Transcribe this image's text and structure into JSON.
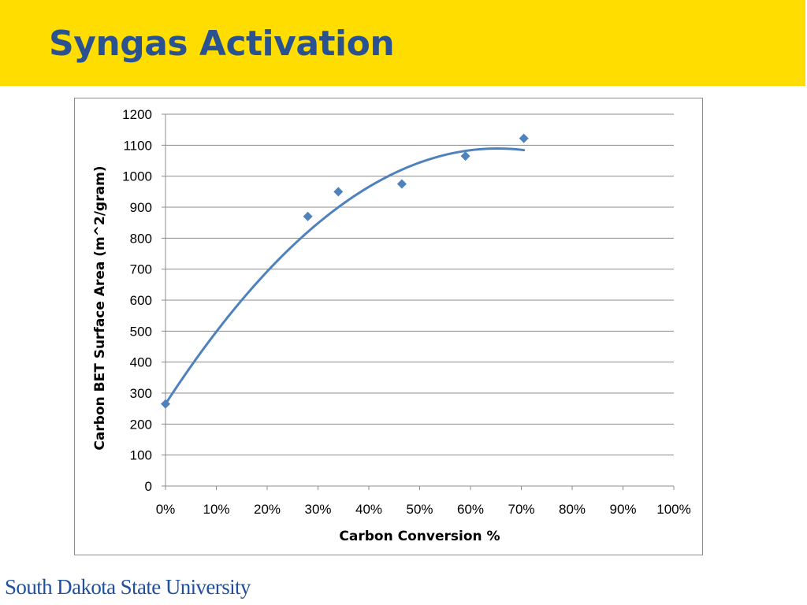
{
  "slide": {
    "title": "Syngas Activation",
    "footer": "South Dakota State University",
    "band_color": "#FFDD00",
    "title_color": "#2A5291"
  },
  "chart_data": {
    "type": "scatter",
    "title": "",
    "xlabel": "Carbon Conversion %",
    "ylabel": "Carbon BET Surface Area (m^2/gram)",
    "xlim": [
      0,
      100
    ],
    "ylim": [
      0,
      1200
    ],
    "x_ticks": [
      "0%",
      "10%",
      "20%",
      "30%",
      "40%",
      "50%",
      "60%",
      "70%",
      "80%",
      "90%",
      "100%"
    ],
    "y_ticks": [
      "0",
      "100",
      "200",
      "300",
      "400",
      "500",
      "600",
      "700",
      "800",
      "900",
      "1000",
      "1100",
      "1200"
    ],
    "grid": "horizontal",
    "legend": "none",
    "marker": "diamond",
    "color": "#4F81BD",
    "series": [
      {
        "points": [
          {
            "x": 0,
            "y": 265
          },
          {
            "x": 28,
            "y": 870
          },
          {
            "x": 34,
            "y": 950
          },
          {
            "x": 46.5,
            "y": 975
          },
          {
            "x": 59,
            "y": 1065
          },
          {
            "x": 70.5,
            "y": 1122
          }
        ]
      }
    ],
    "trendline": {
      "type": "polynomial",
      "order": 2,
      "coefficients": [
        265,
        2524,
        -1932
      ],
      "x_range": [
        0,
        70.5
      ]
    }
  }
}
